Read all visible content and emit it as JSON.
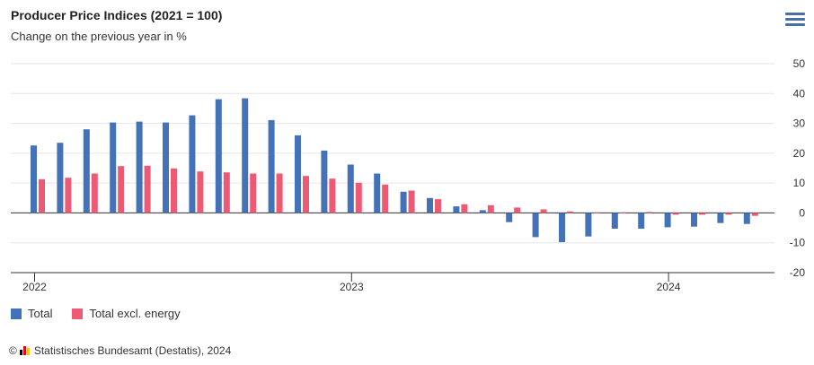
{
  "header": {
    "title": "Producer Price Indices (2021 = 100)",
    "subtitle": "Change on the previous year in %"
  },
  "menu": {
    "icon": "hamburger-menu-icon"
  },
  "legend": {
    "items": [
      {
        "label": "Total",
        "color": "#4472b8"
      },
      {
        "label": "Total excl. energy",
        "color": "#ee5a73"
      }
    ]
  },
  "credits": {
    "symbol": "©",
    "text": "Statistisches Bundesamt (Destatis), 2024",
    "logo_icon": "destatis-bars-logo",
    "logo_colors": [
      "#000000",
      "#e3001b",
      "#f5c400"
    ]
  },
  "chart_data": {
    "type": "bar",
    "title": "Producer Price Indices (2021 = 100)",
    "subtitle": "Change on the previous year in %",
    "ylim": [
      -20,
      50
    ],
    "yticks": [
      50,
      40,
      30,
      20,
      10,
      0,
      -10,
      -20
    ],
    "xtick_labels": [
      {
        "label": "2022",
        "month_index": 0
      },
      {
        "label": "2023",
        "month_index": 12
      },
      {
        "label": "2024",
        "month_index": 24
      }
    ],
    "months": [
      "Jan 2022",
      "Feb 2022",
      "Mar 2022",
      "Apr 2022",
      "May 2022",
      "Jun 2022",
      "Jul 2022",
      "Aug 2022",
      "Sep 2022",
      "Oct 2022",
      "Nov 2022",
      "Dec 2022",
      "Jan 2023",
      "Feb 2023",
      "Mar 2023",
      "Apr 2023",
      "May 2023",
      "Jun 2023",
      "Jul 2023",
      "Aug 2023",
      "Sep 2023",
      "Oct 2023",
      "Nov 2023",
      "Dec 2023",
      "Jan 2024",
      "Feb 2024",
      "Mar 2024",
      "Apr 2024"
    ],
    "series": [
      {
        "name": "Total",
        "color": "#4472b8",
        "values": [
          22.6,
          23.5,
          28.0,
          30.3,
          30.6,
          30.3,
          32.7,
          38.1,
          38.4,
          31.1,
          26.0,
          20.9,
          16.2,
          13.2,
          7.1,
          5.0,
          2.2,
          0.9,
          -3.1,
          -8.1,
          -9.8,
          -7.9,
          -5.3,
          -5.3,
          -4.8,
          -4.6,
          -3.4,
          -3.7
        ]
      },
      {
        "name": "Total excl. energy",
        "color": "#ee5a73",
        "values": [
          11.3,
          11.8,
          13.2,
          15.7,
          15.8,
          14.9,
          13.9,
          13.6,
          13.2,
          13.2,
          12.4,
          11.5,
          10.1,
          9.5,
          7.5,
          4.6,
          2.9,
          2.6,
          1.8,
          1.2,
          0.5,
          0.2,
          0.2,
          0.3,
          -0.6,
          -0.6,
          -0.6,
          -1.0
        ]
      }
    ],
    "grid": true,
    "legend_position": "bottom-left"
  }
}
